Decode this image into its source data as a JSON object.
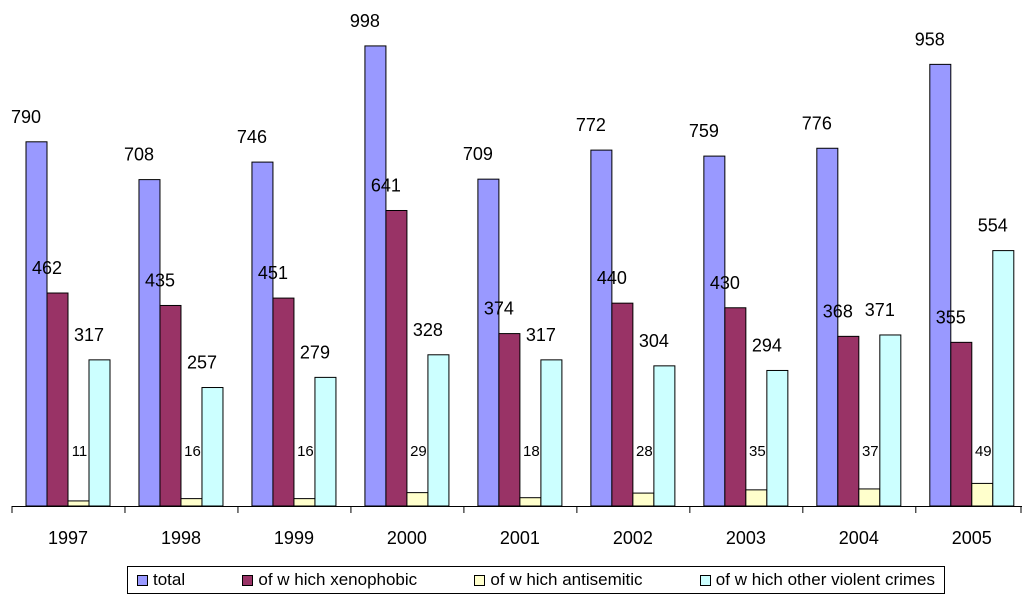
{
  "chart_data": {
    "type": "bar",
    "title": "",
    "xlabel": "",
    "ylabel": "",
    "categories": [
      "1997",
      "1998",
      "1999",
      "2000",
      "2001",
      "2002",
      "2003",
      "2004",
      "2005"
    ],
    "ylim": [
      0,
      1000
    ],
    "grid": false,
    "legend_position": "bottom",
    "series": [
      {
        "name": "total",
        "color": "#9999FF",
        "label_size": "large",
        "values": [
          790,
          708,
          746,
          998,
          709,
          772,
          759,
          776,
          958
        ]
      },
      {
        "name": "of w hich xenophobic",
        "color": "#993366",
        "label_size": "large",
        "values": [
          462,
          435,
          451,
          641,
          374,
          440,
          430,
          368,
          355
        ]
      },
      {
        "name": "of w hich antisemitic",
        "color": "#FFFFCC",
        "label_size": "small",
        "values": [
          11,
          16,
          16,
          29,
          18,
          28,
          35,
          37,
          49
        ]
      },
      {
        "name": "of w hich other violent crimes",
        "color": "#CCFFFF",
        "label_size": "large",
        "values": [
          317,
          257,
          279,
          328,
          317,
          304,
          294,
          371,
          554
        ]
      }
    ]
  }
}
